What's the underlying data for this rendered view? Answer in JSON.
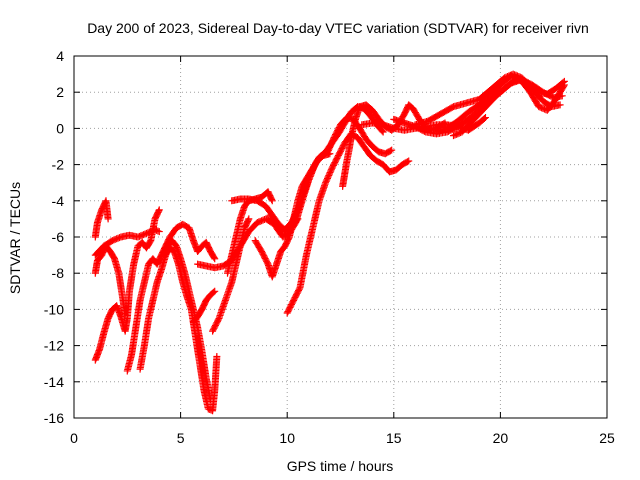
{
  "chart_data": {
    "type": "scatter",
    "title": "Day 200 of 2023, Sidereal Day-to-day VTEC variation (SDTVAR) for receiver rivn",
    "xlabel": "GPS time / hours",
    "ylabel": "SDTVAR / TECUs",
    "xlim": [
      0,
      25
    ],
    "ylim": [
      -16,
      4
    ],
    "xticks": [
      0,
      5,
      10,
      15,
      20,
      25
    ],
    "yticks": [
      -16,
      -14,
      -12,
      -10,
      -8,
      -6,
      -4,
      -2,
      0,
      2,
      4
    ],
    "grid": true,
    "marker": "plus",
    "series_color": "#ff0000",
    "series": [
      {
        "points": [
          [
            1.0,
            -6.0
          ],
          [
            1.1,
            -5.2
          ],
          [
            1.3,
            -4.5
          ],
          [
            1.5,
            -4.0
          ],
          [
            1.6,
            -5.0
          ]
        ]
      },
      {
        "points": [
          [
            1.0,
            -8.0
          ],
          [
            1.1,
            -7.3
          ],
          [
            1.3,
            -7.0
          ],
          [
            1.5,
            -6.5
          ],
          [
            1.7,
            -6.8
          ],
          [
            1.9,
            -7.2
          ],
          [
            2.1,
            -8.0
          ],
          [
            2.3,
            -9.5
          ],
          [
            2.4,
            -10.3
          ]
        ]
      },
      {
        "points": [
          [
            1.0,
            -7.0
          ],
          [
            1.4,
            -6.5
          ],
          [
            1.8,
            -6.2
          ],
          [
            2.2,
            -6.0
          ],
          [
            2.6,
            -5.9
          ],
          [
            3.0,
            -6.0
          ],
          [
            3.4,
            -5.8
          ],
          [
            3.8,
            -5.6
          ],
          [
            4.0,
            -5.7
          ]
        ]
      },
      {
        "points": [
          [
            1.0,
            -12.8
          ],
          [
            1.2,
            -12.2
          ],
          [
            1.4,
            -11.3
          ],
          [
            1.6,
            -10.5
          ],
          [
            1.8,
            -10.0
          ],
          [
            2.0,
            -9.8
          ],
          [
            2.2,
            -10.4
          ],
          [
            2.4,
            -11.2
          ],
          [
            2.5,
            -10.5
          ],
          [
            2.6,
            -9.0
          ],
          [
            2.8,
            -7.5
          ],
          [
            3.0,
            -6.5
          ],
          [
            3.2,
            -6.3
          ],
          [
            3.4,
            -6.6
          ],
          [
            3.6,
            -6.2
          ],
          [
            3.8,
            -5.0
          ],
          [
            4.0,
            -4.5
          ]
        ]
      },
      {
        "points": [
          [
            2.5,
            -13.4
          ],
          [
            2.7,
            -12.5
          ],
          [
            2.9,
            -11.0
          ],
          [
            3.1,
            -9.5
          ],
          [
            3.3,
            -8.5
          ],
          [
            3.5,
            -7.5
          ],
          [
            3.7,
            -7.2
          ],
          [
            3.9,
            -7.5
          ],
          [
            4.1,
            -7.0
          ],
          [
            4.3,
            -6.5
          ],
          [
            4.5,
            -6.0
          ],
          [
            4.8,
            -5.5
          ],
          [
            5.1,
            -5.3
          ],
          [
            5.4,
            -5.5
          ],
          [
            5.6,
            -6.2
          ],
          [
            5.8,
            -6.8
          ],
          [
            6.0,
            -6.5
          ],
          [
            6.2,
            -6.3
          ],
          [
            6.4,
            -6.8
          ],
          [
            6.6,
            -7.2
          ]
        ]
      },
      {
        "points": [
          [
            3.1,
            -13.3
          ],
          [
            3.3,
            -12.0
          ],
          [
            3.5,
            -10.5
          ],
          [
            3.7,
            -9.5
          ],
          [
            3.9,
            -8.5
          ],
          [
            4.1,
            -7.8
          ],
          [
            4.3,
            -7.0
          ],
          [
            4.5,
            -6.6
          ],
          [
            4.7,
            -6.8
          ],
          [
            4.9,
            -7.5
          ],
          [
            5.1,
            -8.5
          ],
          [
            5.3,
            -9.3
          ],
          [
            5.5,
            -10.0
          ],
          [
            5.7,
            -11.5
          ],
          [
            5.9,
            -13.0
          ],
          [
            6.1,
            -14.5
          ],
          [
            6.3,
            -15.5
          ],
          [
            6.5,
            -15.6
          ],
          [
            6.6,
            -14.5
          ],
          [
            6.7,
            -12.6
          ]
        ]
      },
      {
        "points": [
          [
            4.2,
            -7.0
          ],
          [
            4.4,
            -6.5
          ],
          [
            4.6,
            -6.2
          ],
          [
            4.8,
            -6.5
          ],
          [
            5.0,
            -7.2
          ],
          [
            5.2,
            -8.0
          ],
          [
            5.4,
            -9.0
          ],
          [
            5.6,
            -10.0
          ],
          [
            5.8,
            -11.0
          ],
          [
            6.0,
            -12.3
          ],
          [
            6.2,
            -13.8
          ],
          [
            6.4,
            -15.0
          ]
        ]
      },
      {
        "points": [
          [
            5.6,
            -10.7
          ],
          [
            5.8,
            -10.4
          ],
          [
            6.0,
            -10.0
          ],
          [
            6.2,
            -9.5
          ],
          [
            6.4,
            -9.2
          ],
          [
            6.6,
            -9.0
          ]
        ]
      },
      {
        "points": [
          [
            5.8,
            -7.5
          ],
          [
            6.2,
            -7.6
          ],
          [
            6.6,
            -7.7
          ],
          [
            7.0,
            -7.6
          ],
          [
            7.4,
            -7.3
          ],
          [
            7.8,
            -6.5
          ],
          [
            8.2,
            -5.7
          ],
          [
            8.6,
            -5.2
          ],
          [
            9.0,
            -5.0
          ],
          [
            9.4,
            -5.3
          ],
          [
            9.8,
            -5.7
          ],
          [
            10.2,
            -5.5
          ],
          [
            10.5,
            -5.0
          ]
        ]
      },
      {
        "points": [
          [
            6.5,
            -11.2
          ],
          [
            6.8,
            -10.5
          ],
          [
            7.1,
            -9.5
          ],
          [
            7.4,
            -8.5
          ],
          [
            7.6,
            -7.5
          ],
          [
            7.8,
            -6.5
          ],
          [
            8.0,
            -5.5
          ],
          [
            8.2,
            -5.0
          ]
        ]
      },
      {
        "points": [
          [
            7.2,
            -8.0
          ],
          [
            7.4,
            -7.0
          ],
          [
            7.6,
            -6.0
          ],
          [
            7.8,
            -5.0
          ],
          [
            8.0,
            -4.3
          ],
          [
            8.2,
            -4.0
          ],
          [
            8.5,
            -3.9
          ],
          [
            8.8,
            -3.8
          ],
          [
            9.1,
            -3.5
          ],
          [
            9.3,
            -4.0
          ]
        ]
      },
      {
        "points": [
          [
            7.4,
            -4.0
          ],
          [
            7.8,
            -3.9
          ],
          [
            8.2,
            -3.9
          ],
          [
            8.6,
            -4.0
          ],
          [
            9.0,
            -4.3
          ],
          [
            9.3,
            -4.8
          ],
          [
            9.6,
            -5.3
          ],
          [
            9.9,
            -5.6
          ],
          [
            10.2,
            -5.2
          ],
          [
            10.5,
            -4.5
          ],
          [
            10.8,
            -3.5
          ],
          [
            11.1,
            -2.5
          ],
          [
            11.4,
            -1.8
          ],
          [
            11.7,
            -1.5
          ],
          [
            12.0,
            -1.4
          ]
        ]
      },
      {
        "points": [
          [
            8.5,
            -6.2
          ],
          [
            8.8,
            -6.8
          ],
          [
            9.1,
            -7.5
          ],
          [
            9.3,
            -8.2
          ],
          [
            9.5,
            -7.5
          ],
          [
            9.7,
            -6.8
          ],
          [
            9.9,
            -6.5
          ],
          [
            10.1,
            -6.0
          ],
          [
            10.3,
            -5.0
          ],
          [
            10.5,
            -4.0
          ],
          [
            10.7,
            -3.2
          ],
          [
            10.9,
            -2.8
          ],
          [
            11.1,
            -2.4
          ],
          [
            11.3,
            -2.0
          ],
          [
            11.5,
            -1.6
          ],
          [
            11.8,
            -1.3
          ],
          [
            12.1,
            -0.8
          ],
          [
            12.4,
            -0.3
          ],
          [
            12.7,
            0.3
          ],
          [
            13.0,
            0.9
          ],
          [
            13.3,
            1.2
          ],
          [
            13.6,
            1.1
          ],
          [
            13.9,
            0.7
          ],
          [
            14.2,
            0.2
          ],
          [
            14.5,
            -0.2
          ]
        ]
      },
      {
        "points": [
          [
            9.2,
            -4.8
          ],
          [
            9.5,
            -5.5
          ],
          [
            9.8,
            -6.0
          ],
          [
            10.1,
            -5.8
          ],
          [
            10.4,
            -5.2
          ],
          [
            10.7,
            -4.0
          ],
          [
            11.0,
            -2.9
          ],
          [
            11.3,
            -2.0
          ],
          [
            11.6,
            -1.5
          ],
          [
            11.9,
            -1.3
          ],
          [
            12.2,
            -0.5
          ],
          [
            12.5,
            0.2
          ],
          [
            12.8,
            0.6
          ],
          [
            13.1,
            0.5
          ],
          [
            13.4,
            0.0
          ],
          [
            13.7,
            -0.6
          ],
          [
            14.0,
            -1.0
          ],
          [
            14.3,
            -1.3
          ],
          [
            14.6,
            -1.4
          ],
          [
            14.9,
            -1.2
          ]
        ]
      },
      {
        "points": [
          [
            10.0,
            -10.2
          ],
          [
            10.3,
            -9.5
          ],
          [
            10.6,
            -8.8
          ],
          [
            10.9,
            -7.0
          ],
          [
            11.2,
            -5.5
          ],
          [
            11.5,
            -4.0
          ],
          [
            11.8,
            -3.0
          ],
          [
            12.1,
            -2.2
          ],
          [
            12.4,
            -1.5
          ],
          [
            12.7,
            -0.8
          ],
          [
            13.0,
            -0.3
          ],
          [
            13.3,
            -0.5
          ],
          [
            13.6,
            -1.0
          ],
          [
            13.9,
            -1.5
          ],
          [
            14.2,
            -1.8
          ],
          [
            14.5,
            -2.0
          ],
          [
            14.8,
            -2.4
          ],
          [
            15.1,
            -2.3
          ],
          [
            15.4,
            -2.0
          ],
          [
            15.7,
            -1.8
          ]
        ]
      },
      {
        "points": [
          [
            12.6,
            -3.2
          ],
          [
            12.7,
            -2.5
          ],
          [
            12.8,
            -1.8
          ],
          [
            12.9,
            -1.2
          ],
          [
            13.0,
            -0.5
          ],
          [
            13.2,
            0.5
          ],
          [
            13.4,
            1.2
          ],
          [
            13.7,
            1.3
          ],
          [
            14.0,
            1.0
          ],
          [
            14.3,
            0.5
          ],
          [
            14.6,
            0.1
          ],
          [
            14.9,
            -0.1
          ],
          [
            15.2,
            0.2
          ],
          [
            15.5,
            0.8
          ],
          [
            15.7,
            1.3
          ],
          [
            15.9,
            1.1
          ],
          [
            16.2,
            0.5
          ],
          [
            16.5,
            0.0
          ],
          [
            16.8,
            -0.1
          ],
          [
            17.1,
            0.1
          ],
          [
            17.4,
            0.3
          ]
        ]
      },
      {
        "points": [
          [
            13.5,
            0.2
          ],
          [
            14.0,
            0.3
          ],
          [
            14.5,
            0.2
          ],
          [
            15.0,
            0.0
          ],
          [
            15.5,
            -0.1
          ],
          [
            16.0,
            0.0
          ],
          [
            16.5,
            0.1
          ],
          [
            17.0,
            0.2
          ],
          [
            17.5,
            0.2
          ],
          [
            18.0,
            0.1
          ],
          [
            18.5,
            -0.1
          ],
          [
            19.0,
            0.3
          ],
          [
            19.3,
            0.6
          ]
        ]
      },
      {
        "points": [
          [
            15.0,
            0.5
          ],
          [
            15.5,
            0.3
          ],
          [
            16.0,
            0.1
          ],
          [
            16.5,
            -0.2
          ],
          [
            17.0,
            -0.3
          ],
          [
            17.5,
            -0.2
          ],
          [
            18.0,
            0.1
          ],
          [
            18.5,
            0.5
          ],
          [
            19.0,
            1.0
          ],
          [
            19.5,
            1.5
          ],
          [
            20.0,
            2.0
          ],
          [
            20.5,
            2.5
          ],
          [
            21.0,
            2.7
          ],
          [
            21.5,
            2.4
          ],
          [
            22.0,
            2.0
          ],
          [
            22.5,
            1.7
          ],
          [
            22.9,
            1.8
          ]
        ]
      },
      {
        "points": [
          [
            16.0,
            0.2
          ],
          [
            16.6,
            0.4
          ],
          [
            17.2,
            0.8
          ],
          [
            17.8,
            1.2
          ],
          [
            18.4,
            1.4
          ],
          [
            19.0,
            1.6
          ],
          [
            19.6,
            2.2
          ],
          [
            20.2,
            2.8
          ],
          [
            20.6,
            3.0
          ],
          [
            21.0,
            2.8
          ],
          [
            21.5,
            2.2
          ],
          [
            22.0,
            1.5
          ],
          [
            22.4,
            1.2
          ],
          [
            22.8,
            1.3
          ]
        ]
      },
      {
        "points": [
          [
            17.0,
            -0.2
          ],
          [
            17.5,
            0.0
          ],
          [
            18.0,
            0.4
          ],
          [
            18.5,
            0.9
          ],
          [
            19.0,
            1.3
          ],
          [
            19.5,
            1.8
          ],
          [
            20.0,
            2.4
          ],
          [
            20.5,
            2.9
          ],
          [
            21.0,
            2.6
          ],
          [
            21.4,
            2.0
          ],
          [
            21.8,
            1.2
          ],
          [
            22.2,
            1.0
          ],
          [
            22.6,
            1.6
          ],
          [
            23.0,
            2.4
          ]
        ]
      },
      {
        "points": [
          [
            17.8,
            -0.4
          ],
          [
            18.2,
            -0.2
          ],
          [
            18.6,
            0.3
          ],
          [
            19.0,
            0.8
          ],
          [
            19.4,
            1.3
          ],
          [
            19.8,
            1.8
          ],
          [
            20.2,
            2.2
          ],
          [
            20.6,
            2.6
          ],
          [
            21.0,
            2.7
          ],
          [
            21.4,
            2.4
          ],
          [
            21.8,
            2.0
          ],
          [
            22.2,
            1.9
          ],
          [
            22.6,
            2.2
          ],
          [
            23.0,
            2.6
          ]
        ]
      }
    ]
  }
}
